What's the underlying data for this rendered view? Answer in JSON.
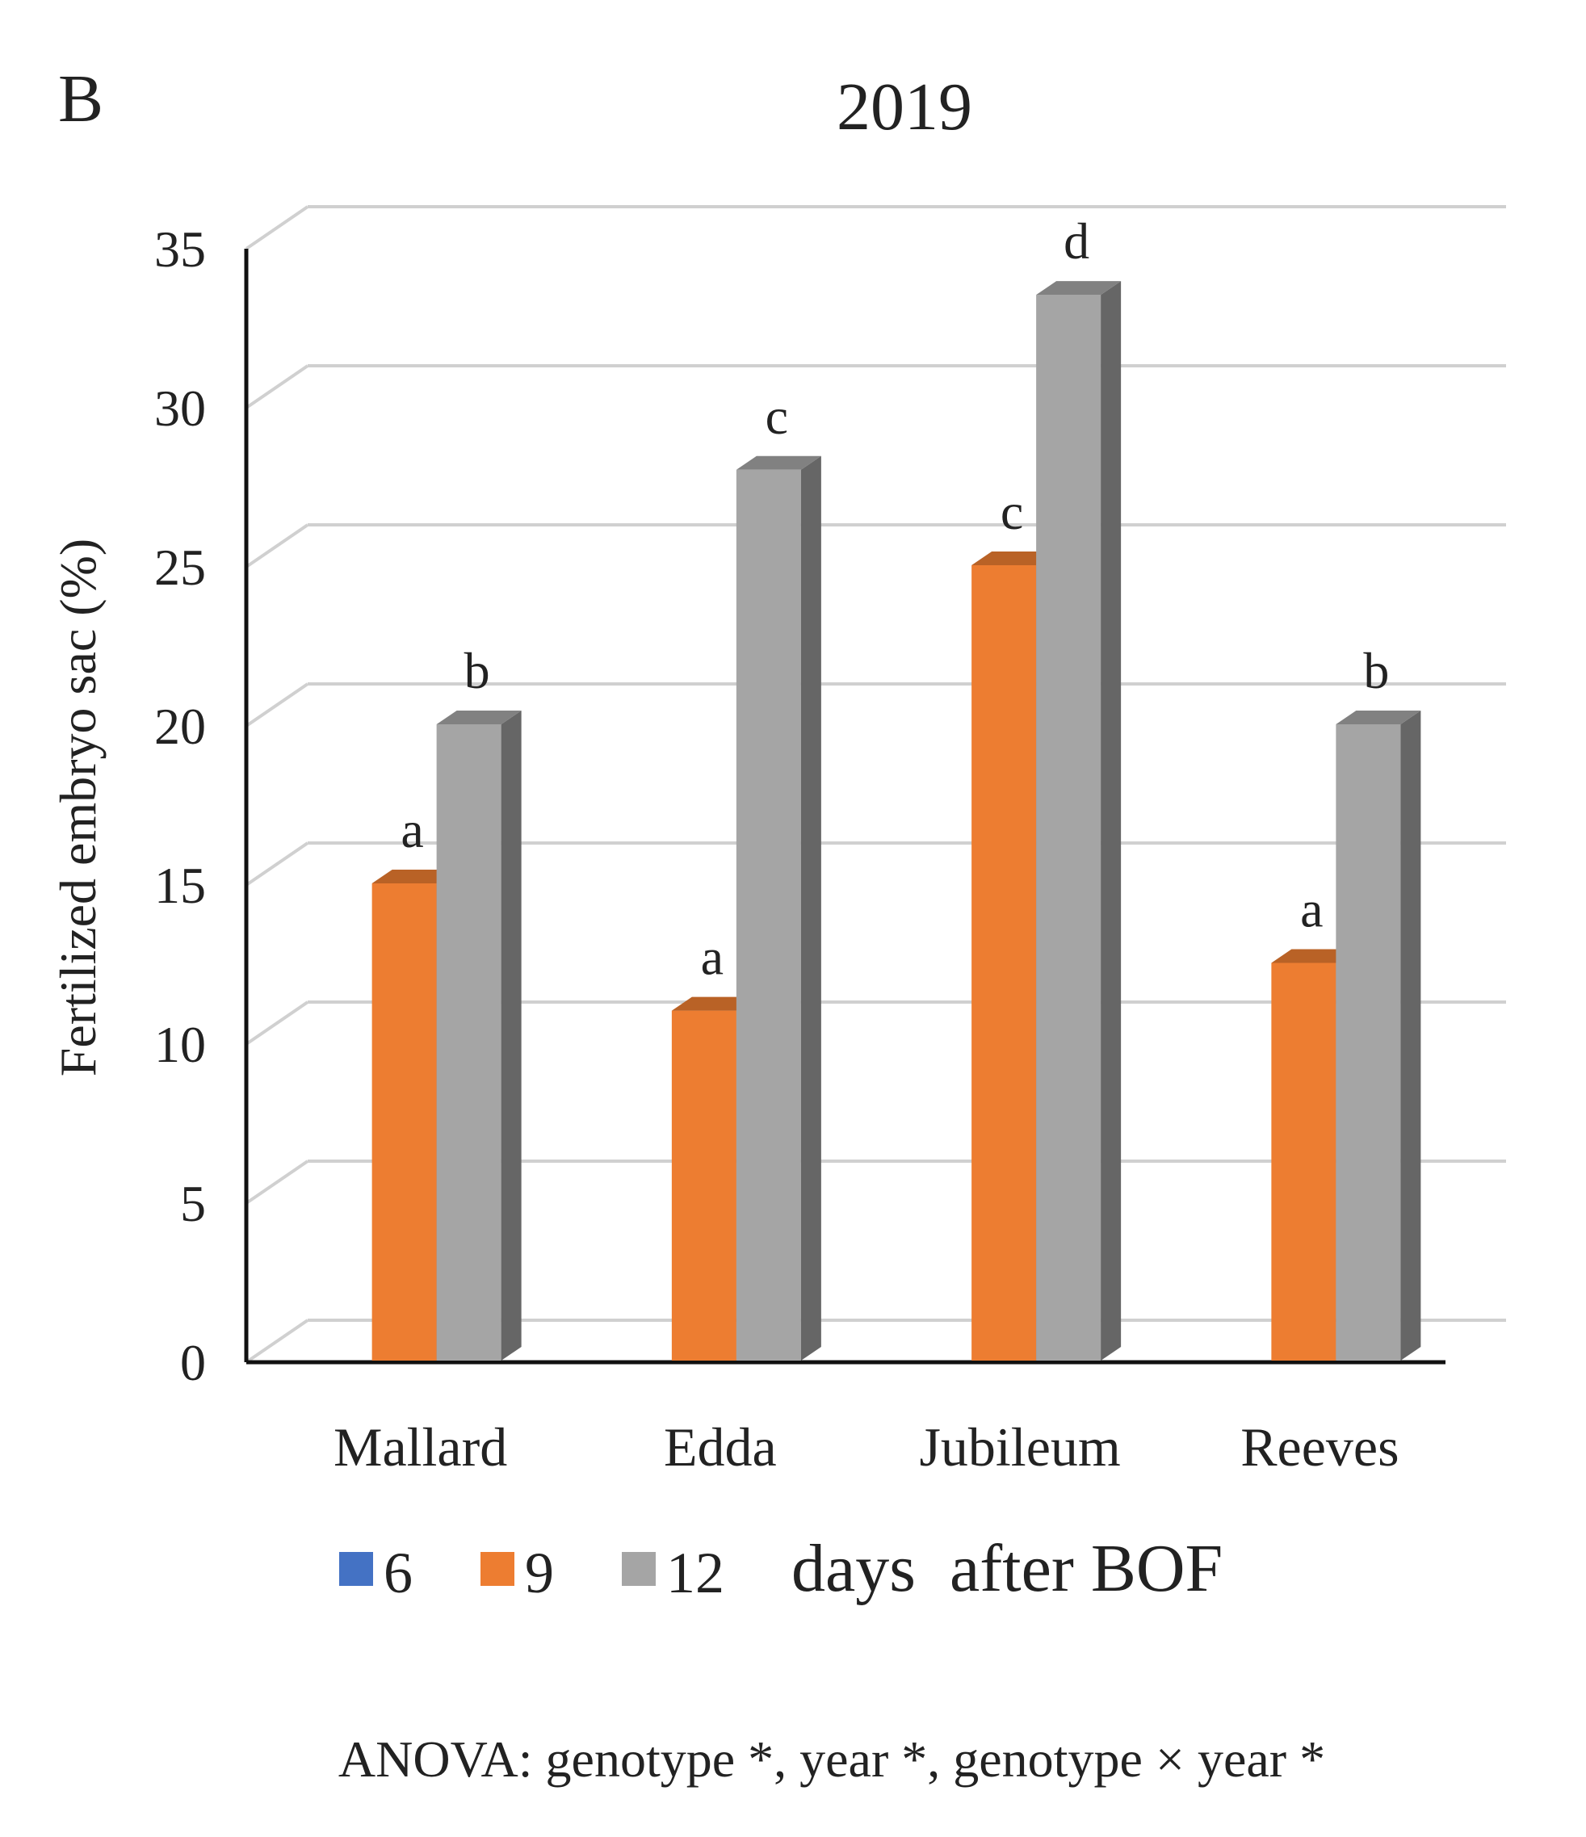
{
  "panel_label": "B",
  "chart_data": {
    "type": "bar",
    "title": "2019",
    "ylabel": "Fertilized embryo sac (%)",
    "xlabel": "",
    "ylim": [
      0,
      35
    ],
    "yticks": [
      0,
      5,
      10,
      15,
      20,
      25,
      30,
      35
    ],
    "grid": true,
    "categories": [
      "Mallard",
      "Edda",
      "Jubileum",
      "Reeves"
    ],
    "series": [
      {
        "name": "6",
        "color": "#4472c4",
        "values": [
          null,
          null,
          null,
          null
        ],
        "labels": [
          "",
          "",
          "",
          ""
        ]
      },
      {
        "name": "9",
        "color": "#ed7d31",
        "values": [
          15,
          11,
          25,
          12.5
        ],
        "labels": [
          "a",
          "a",
          "c",
          "a"
        ]
      },
      {
        "name": "12",
        "color": "#a5a5a5",
        "values": [
          20,
          28,
          33.5,
          20
        ],
        "labels": [
          "b",
          "c",
          "d",
          "b"
        ]
      }
    ],
    "legend_title": "days  after BOF",
    "legend_position": "bottom"
  },
  "footnote": "ANOVA: genotype *, year *, genotype × year *"
}
